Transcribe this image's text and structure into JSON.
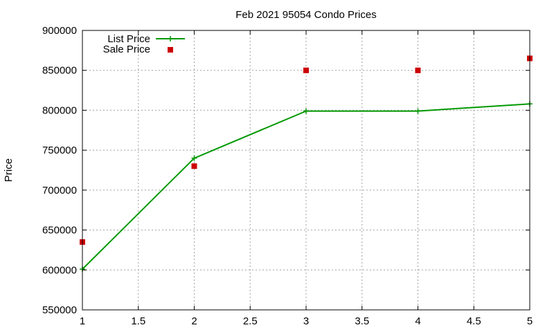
{
  "chart_data": {
    "type": "line",
    "title": "Feb 2021 95054 Condo Prices",
    "xlabel": "",
    "ylabel": "Price",
    "xlim": [
      1,
      5
    ],
    "ylim": [
      550000,
      900000
    ],
    "x_ticks": [
      1,
      1.5,
      2,
      2.5,
      3,
      3.5,
      4,
      4.5,
      5
    ],
    "y_ticks": [
      550000,
      600000,
      650000,
      700000,
      750000,
      800000,
      850000,
      900000
    ],
    "grid": true,
    "legend_position": "top-left",
    "series": [
      {
        "name": "List Price",
        "style": "linespoints",
        "marker": "plus",
        "color": "#009900",
        "points": [
          {
            "x": 1,
            "y": 601000
          },
          {
            "x": 2,
            "y": 740000
          },
          {
            "x": 3,
            "y": 799000
          },
          {
            "x": 4,
            "y": 799000
          },
          {
            "x": 5,
            "y": 808000
          }
        ]
      },
      {
        "name": "Sale Price",
        "style": "points",
        "marker": "square",
        "color": "#cc0000",
        "points": [
          {
            "x": 1,
            "y": 635000
          },
          {
            "x": 2,
            "y": 730000
          },
          {
            "x": 3,
            "y": 850000
          },
          {
            "x": 4,
            "y": 850000
          },
          {
            "x": 5,
            "y": 865000
          }
        ]
      }
    ]
  }
}
